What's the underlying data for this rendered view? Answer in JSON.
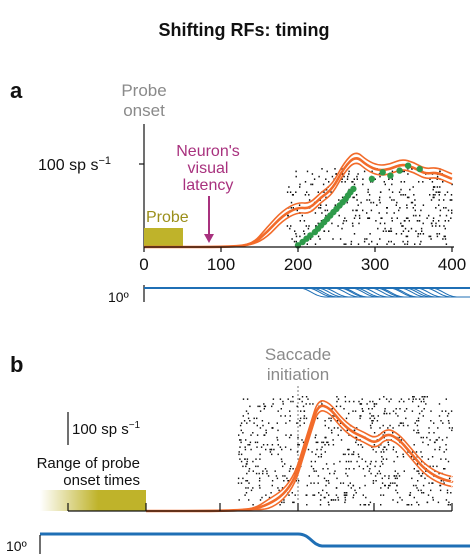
{
  "figure": {
    "title": "Shifting RFs: timing",
    "panel_a": {
      "label": "a",
      "probe_onset_label": [
        "Probe",
        "onset"
      ],
      "latency_label": [
        "Neuron's",
        "visual",
        "latency"
      ],
      "probe_label": "Probe",
      "scale_rate": "100 sp s",
      "scale_rate_sup": "−1",
      "eye_scale": "10º",
      "colors": {
        "rate": "#F26B2A",
        "probe": "#BFB32A",
        "latency": "#A8317E",
        "dots": "#2E9A4A",
        "eye": "#1F6FB5"
      }
    },
    "panel_b": {
      "label": "b",
      "saccade_label": [
        "Saccade",
        "initiation"
      ],
      "scale_rate": "100 sp s",
      "scale_rate_sup": "−1",
      "range_label": [
        "Range of probe",
        "onset times"
      ],
      "eye_scale": "10º"
    }
  },
  "chart_data": [
    {
      "type": "line",
      "panel": "a",
      "xlabel": "",
      "x_ticks": [
        0,
        100,
        200,
        300,
        400
      ],
      "xlim": [
        0,
        400
      ],
      "probe_interval": [
        0,
        50
      ],
      "visual_latency": 90,
      "series": [
        {
          "x": [
            0,
            50,
            100,
            140,
            160,
            180,
            200,
            215,
            230,
            245,
            260,
            275,
            290,
            305,
            320,
            335,
            350,
            365,
            380,
            395,
            400
          ],
          "values": [
            0,
            0,
            0,
            2,
            18,
            38,
            48,
            46,
            60,
            70,
            96,
            110,
            98,
            92,
            94,
            100,
            96,
            88,
            90,
            84,
            82
          ]
        }
      ],
      "saccade_fits_x": [
        200,
        206,
        211,
        216,
        222,
        226,
        230,
        234,
        238,
        242,
        246,
        250,
        254,
        258,
        262,
        265,
        268,
        272,
        296,
        310,
        320,
        332,
        343,
        358
      ],
      "saccade_fits_y": [
        2,
        6,
        10,
        14,
        18,
        22,
        26,
        30,
        34,
        38,
        42,
        46,
        50,
        54,
        58,
        62,
        66,
        70,
        82,
        90,
        86,
        92,
        98,
        94
      ]
    },
    {
      "type": "line",
      "panel": "b",
      "xlabel": "",
      "xlim": [
        0,
        400
      ],
      "saccade_initiation": 200,
      "series": [
        {
          "x": [
            0,
            100,
            140,
            160,
            180,
            195,
            205,
            215,
            225,
            240,
            255,
            270,
            285,
            300,
            315,
            330,
            345,
            360,
            375,
            390,
            400
          ],
          "values": [
            0,
            0,
            2,
            8,
            20,
            40,
            70,
            100,
            130,
            126,
            108,
            96,
            90,
            82,
            95,
            88,
            72,
            55,
            44,
            38,
            36
          ]
        }
      ]
    }
  ]
}
